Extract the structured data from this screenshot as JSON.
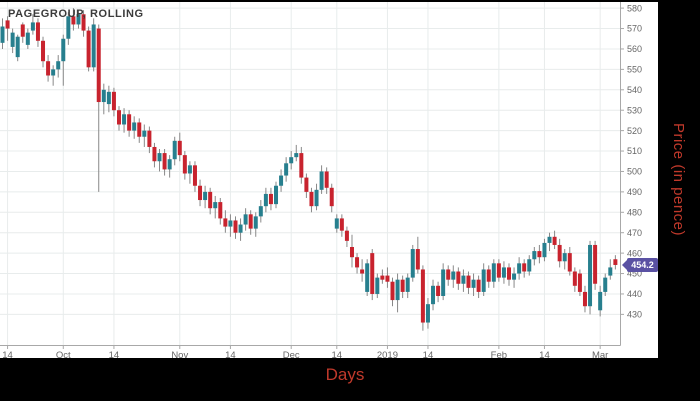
{
  "chart_data": {
    "type": "candlestick",
    "title": "PAGEGROUP, ROLLING",
    "xlabel": "Days",
    "ylabel": "Price (in pence)",
    "last_price": 454.2,
    "last_price_label": "454.2",
    "grid": true,
    "legend": false,
    "ylim": [
      415,
      583
    ],
    "y_ticks": [
      580,
      570,
      560,
      550,
      540,
      530,
      520,
      510,
      500,
      490,
      480,
      470,
      460,
      450,
      440,
      430
    ],
    "x_ticks": [
      {
        "index": 1,
        "label": "14"
      },
      {
        "index": 12,
        "label": "Oct"
      },
      {
        "index": 22,
        "label": "14"
      },
      {
        "index": 35,
        "label": "Nov"
      },
      {
        "index": 45,
        "label": "14"
      },
      {
        "index": 57,
        "label": "Dec"
      },
      {
        "index": 66,
        "label": "14"
      },
      {
        "index": 76,
        "label": "2019"
      },
      {
        "index": 84,
        "label": "14"
      },
      {
        "index": 98,
        "label": "Feb"
      },
      {
        "index": 107,
        "label": "14"
      },
      {
        "index": 118,
        "label": "Mar"
      }
    ],
    "candles": [
      [
        563,
        575,
        560,
        571
      ],
      [
        574,
        576,
        564,
        570
      ],
      [
        561,
        570,
        558,
        568
      ],
      [
        556,
        567,
        554,
        566
      ],
      [
        572,
        573,
        563,
        566
      ],
      [
        562,
        570,
        560,
        568
      ],
      [
        569,
        577,
        567,
        573
      ],
      [
        573,
        575,
        561,
        564
      ],
      [
        564,
        566,
        551,
        554
      ],
      [
        554,
        557,
        544,
        547
      ],
      [
        547,
        552,
        542,
        550
      ],
      [
        550,
        557,
        546,
        554
      ],
      [
        554,
        567,
        542,
        565
      ],
      [
        565,
        578,
        562,
        576
      ],
      [
        576,
        580,
        569,
        572
      ],
      [
        572,
        579,
        570,
        577
      ],
      [
        577,
        579,
        566,
        569
      ],
      [
        569,
        571,
        549,
        551
      ],
      [
        551,
        575,
        549,
        572
      ],
      [
        570,
        572,
        490,
        534
      ],
      [
        534,
        543,
        528,
        540
      ],
      [
        533,
        542,
        529,
        539
      ],
      [
        539,
        541,
        527,
        530
      ],
      [
        530,
        532,
        520,
        523
      ],
      [
        523,
        531,
        519,
        528
      ],
      [
        528,
        530,
        517,
        520
      ],
      [
        520,
        527,
        516,
        524
      ],
      [
        524,
        526,
        514,
        517
      ],
      [
        517,
        523,
        512,
        520
      ],
      [
        520,
        522,
        509,
        512
      ],
      [
        512,
        514,
        502,
        505
      ],
      [
        505,
        511,
        500,
        509
      ],
      [
        509,
        511,
        498,
        501
      ],
      [
        501,
        508,
        497,
        506
      ],
      [
        506,
        517,
        503,
        515
      ],
      [
        515,
        519,
        505,
        508
      ],
      [
        508,
        510,
        496,
        499
      ],
      [
        499,
        505,
        494,
        503
      ],
      [
        503,
        505,
        490,
        493
      ],
      [
        493,
        496,
        483,
        486
      ],
      [
        486,
        493,
        482,
        490
      ],
      [
        490,
        492,
        479,
        482
      ],
      [
        482,
        488,
        477,
        485
      ],
      [
        485,
        487,
        474,
        477
      ],
      [
        477,
        481,
        470,
        473
      ],
      [
        473,
        479,
        468,
        476
      ],
      [
        476,
        478,
        467,
        470
      ],
      [
        470,
        477,
        466,
        474
      ],
      [
        474,
        482,
        471,
        479
      ],
      [
        479,
        481,
        469,
        472
      ],
      [
        472,
        480,
        468,
        478
      ],
      [
        478,
        486,
        475,
        483
      ],
      [
        483,
        492,
        480,
        489
      ],
      [
        489,
        492,
        481,
        484
      ],
      [
        484,
        495,
        482,
        493
      ],
      [
        493,
        501,
        490,
        498
      ],
      [
        498,
        507,
        495,
        504
      ],
      [
        504,
        510,
        501,
        507
      ],
      [
        507,
        513,
        505,
        509
      ],
      [
        509,
        512,
        494,
        497
      ],
      [
        497,
        499,
        487,
        490
      ],
      [
        490,
        492,
        480,
        483
      ],
      [
        483,
        494,
        481,
        491
      ],
      [
        491,
        503,
        489,
        500
      ],
      [
        500,
        502,
        489,
        492
      ],
      [
        492,
        494,
        480,
        483
      ],
      [
        472,
        479,
        470,
        477
      ],
      [
        477,
        479,
        468,
        471
      ],
      [
        471,
        473,
        463,
        466
      ],
      [
        463,
        469,
        453,
        458
      ],
      [
        458,
        460,
        450,
        453
      ],
      [
        452,
        457,
        446,
        450
      ],
      [
        441,
        457,
        439,
        455
      ],
      [
        460,
        462,
        437,
        440
      ],
      [
        440,
        450,
        438,
        448
      ],
      [
        449,
        452,
        445,
        447
      ],
      [
        449,
        453,
        443,
        446
      ],
      [
        446,
        448,
        434,
        437
      ],
      [
        437,
        450,
        431,
        447
      ],
      [
        447,
        449,
        438,
        441
      ],
      [
        441,
        450,
        438,
        448
      ],
      [
        448,
        464,
        446,
        462
      ],
      [
        462,
        468,
        450,
        452
      ],
      [
        452,
        454,
        422,
        426
      ],
      [
        426,
        438,
        423,
        435
      ],
      [
        435,
        447,
        432,
        444
      ],
      [
        444,
        446,
        436,
        439
      ],
      [
        439,
        455,
        437,
        452
      ],
      [
        452,
        454,
        444,
        447
      ],
      [
        447,
        454,
        443,
        451
      ],
      [
        451,
        453,
        442,
        445
      ],
      [
        445,
        452,
        441,
        449
      ],
      [
        449,
        451,
        440,
        443
      ],
      [
        443,
        450,
        439,
        447
      ],
      [
        447,
        449,
        438,
        441
      ],
      [
        441,
        455,
        439,
        452
      ],
      [
        452,
        454,
        443,
        446
      ],
      [
        446,
        457,
        443,
        455
      ],
      [
        455,
        457,
        446,
        448
      ],
      [
        448,
        456,
        445,
        453
      ],
      [
        453,
        455,
        444,
        447
      ],
      [
        447,
        453,
        443,
        450
      ],
      [
        450,
        458,
        447,
        455
      ],
      [
        455,
        457,
        448,
        451
      ],
      [
        451,
        459,
        449,
        457
      ],
      [
        457,
        463,
        454,
        461
      ],
      [
        461,
        464,
        455,
        458
      ],
      [
        458,
        467,
        456,
        465
      ],
      [
        465,
        470,
        461,
        468
      ],
      [
        468,
        471,
        462,
        464
      ],
      [
        464,
        467,
        453,
        456
      ],
      [
        456,
        462,
        452,
        460
      ],
      [
        460,
        463,
        449,
        451
      ],
      [
        451,
        453,
        441,
        444
      ],
      [
        450,
        452,
        439,
        441
      ],
      [
        441,
        444,
        431,
        434
      ],
      [
        434,
        466,
        430,
        464
      ],
      [
        464,
        466,
        442,
        445
      ],
      [
        432,
        444,
        429,
        441
      ],
      [
        441,
        450,
        439,
        448
      ],
      [
        449,
        457,
        447,
        453
      ],
      [
        457,
        459,
        452,
        454.2
      ]
    ]
  },
  "colors": {
    "up": "#277f8e",
    "down": "#c8232e",
    "wick": "#888888",
    "grid": "#e8ecec",
    "axis": "#a8a8a8",
    "tick_text": "#666666",
    "title_text": "#3b3b3b",
    "tag_bg": "#5a51a3",
    "tag_text": "#ffffff",
    "axis_title_text": "#c0392b",
    "panel": "#ffffff",
    "frame": "#000000"
  }
}
